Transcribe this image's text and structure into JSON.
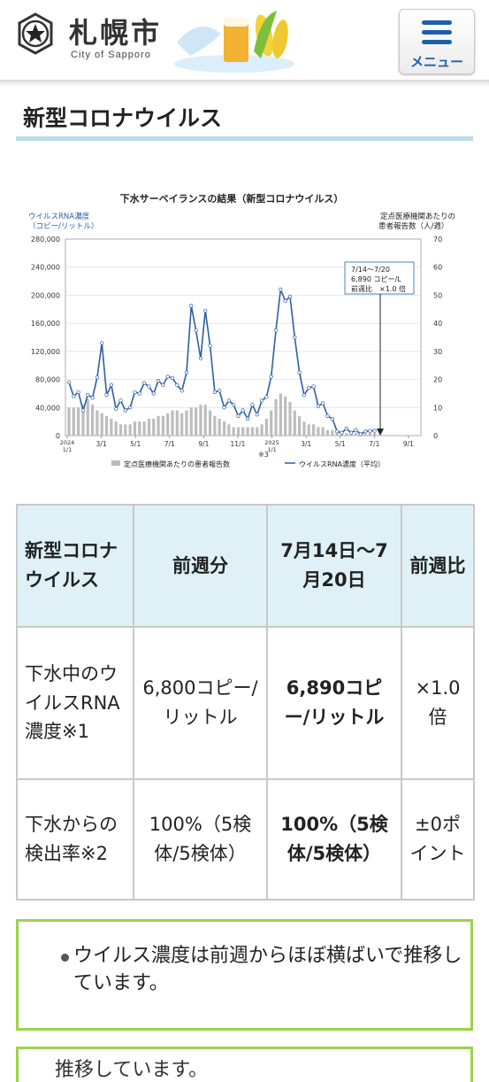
{
  "header": {
    "logo_text": "札幌市",
    "logo_sub": "City of Sapporo",
    "menu_label": "メニュー"
  },
  "page": {
    "title": "新型コロナウイルス"
  },
  "chart_data": {
    "type": "line",
    "title": "下水サーベイランスの結果（新型コロナウイルス）",
    "left_axis_label_1": "ウイルスRNA濃度",
    "left_axis_label_2": "（コピー/リットル）",
    "right_axis_label_1": "定点医療機関あたりの",
    "right_axis_label_2": "患者報告数（人/週）",
    "ylim_left": [
      0,
      280000
    ],
    "ylim_right": [
      0,
      70
    ],
    "yticks_left": [
      "0",
      "40,000",
      "80,000",
      "120,000",
      "160,000",
      "200,000",
      "240,000",
      "280,000"
    ],
    "yticks_right": [
      "0",
      "10",
      "20",
      "30",
      "40",
      "50",
      "60",
      "70"
    ],
    "xticks": [
      "2024 1/1",
      "3/1",
      "5/1",
      "7/1",
      "9/1",
      "11/1",
      "2025 1/1",
      "3/1",
      "5/1",
      "7/1",
      "9/1"
    ],
    "note_mark": "※3",
    "annotation": {
      "line1": "7/14～7/20",
      "line2": "6,890 コピー/L",
      "line3": "前週比　×1.0 倍"
    },
    "legend": {
      "bars": "定点医療機関あたりの患者報告数",
      "line": "ウイルスRNA濃度（平均）"
    },
    "series": [
      {
        "name": "ウイルスRNA濃度（平均）",
        "axis": "left",
        "values": [
          76000,
          56000,
          62000,
          36000,
          58000,
          54000,
          83000,
          132000,
          58000,
          72000,
          38000,
          50000,
          36000,
          40000,
          62000,
          60000,
          75000,
          70000,
          60000,
          78000,
          72000,
          84000,
          82000,
          72000,
          64000,
          90000,
          185000,
          150000,
          110000,
          178000,
          128000,
          62000,
          64000,
          40000,
          50000,
          44000,
          28000,
          36000,
          24000,
          44000,
          30000,
          50000,
          55000,
          84000,
          150000,
          208000,
          192000,
          198000,
          140000,
          90000,
          58000,
          68000,
          70000,
          42000,
          46000,
          28000,
          24000,
          6000,
          4000,
          10000,
          4000,
          8000,
          2000,
          6000,
          6800,
          6890
        ]
      },
      {
        "name": "定点医療機関あたりの患者報告数",
        "axis": "right",
        "values": [
          10,
          10,
          10,
          11,
          13,
          11,
          9,
          8,
          7,
          6,
          5,
          4,
          4,
          4,
          5,
          5,
          5,
          6,
          6,
          7,
          7,
          8,
          9,
          9,
          8,
          9,
          10,
          10,
          11,
          11,
          9,
          7,
          6,
          5,
          4,
          3,
          3,
          3,
          3,
          3,
          3,
          4,
          6,
          9,
          13,
          15,
          14,
          12,
          9,
          7,
          5,
          4,
          4,
          3,
          3,
          2,
          2,
          1,
          1,
          1,
          1,
          1,
          1,
          1,
          1,
          1
        ]
      }
    ]
  },
  "table": {
    "headers": [
      "新型コロナウイルス",
      "前週分",
      "7月14日～7月20日",
      "前週比"
    ],
    "rows": [
      {
        "label": "下水中のウイルスRNA濃度※1",
        "prev": "6,800コピー/リットル",
        "current": "6,890コピー/リットル",
        "ratio": "×1.0倍"
      },
      {
        "label": "下水からの検出率※2",
        "prev": "100%（5検体/5検体）",
        "current": "100%（5検体/5検体）",
        "ratio": "±0ポイント"
      }
    ]
  },
  "notice": {
    "items": [
      "ウイルス濃度は前週からほぼ横ばいで推移しています。"
    ],
    "next_partial": "推移しています。"
  }
}
